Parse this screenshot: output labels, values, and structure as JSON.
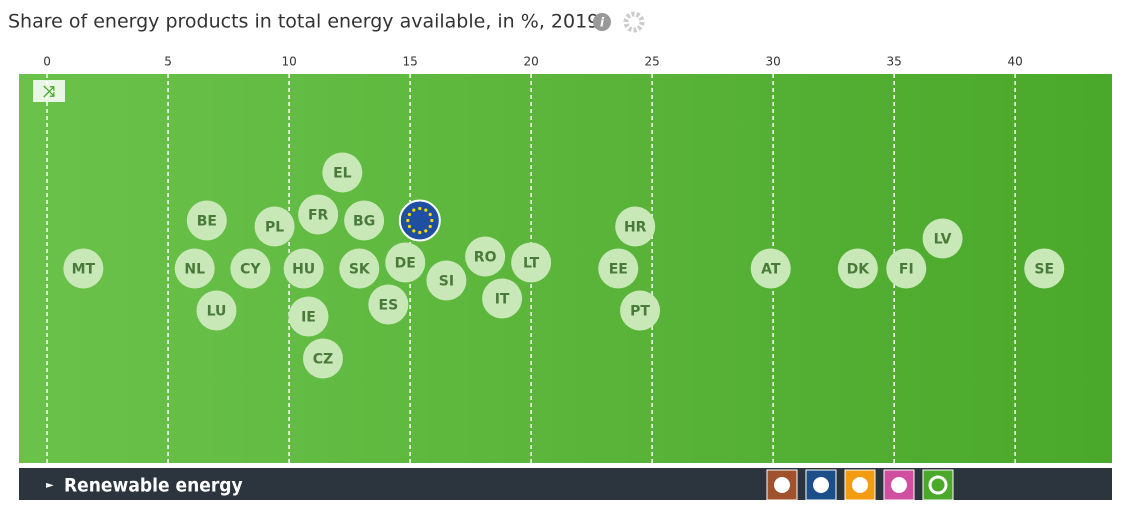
{
  "chart_data": {
    "type": "beeswarm",
    "title": "Share of energy products in total energy available, in %, 2019",
    "product": "Renewable energy",
    "categories": [
      "MT",
      "NL",
      "BE",
      "LU",
      "CY",
      "PL",
      "HU",
      "IE",
      "FR",
      "CZ",
      "EL",
      "SK",
      "BG",
      "ES",
      "DE",
      null,
      "SI",
      "RO",
      "IT",
      "LT",
      "EE",
      "HR",
      "PT",
      "AT",
      "DK",
      "FI",
      "LV",
      "SE"
    ],
    "values": [
      1.5,
      6.1,
      6.6,
      7.0,
      8.4,
      9.4,
      10.6,
      10.8,
      11.2,
      11.4,
      12.2,
      12.9,
      13.1,
      14.1,
      14.8,
      15.4,
      16.5,
      18.1,
      18.8,
      20.0,
      23.6,
      24.3,
      24.5,
      29.9,
      33.5,
      35.5,
      37.0,
      41.2
    ],
    "color": "#c8e8b8",
    "xlim": [
      -1.16,
      44.0
    ],
    "xticks": [
      0,
      5,
      10,
      15,
      20,
      25,
      30,
      35,
      40
    ],
    "grid": true
  }
}
